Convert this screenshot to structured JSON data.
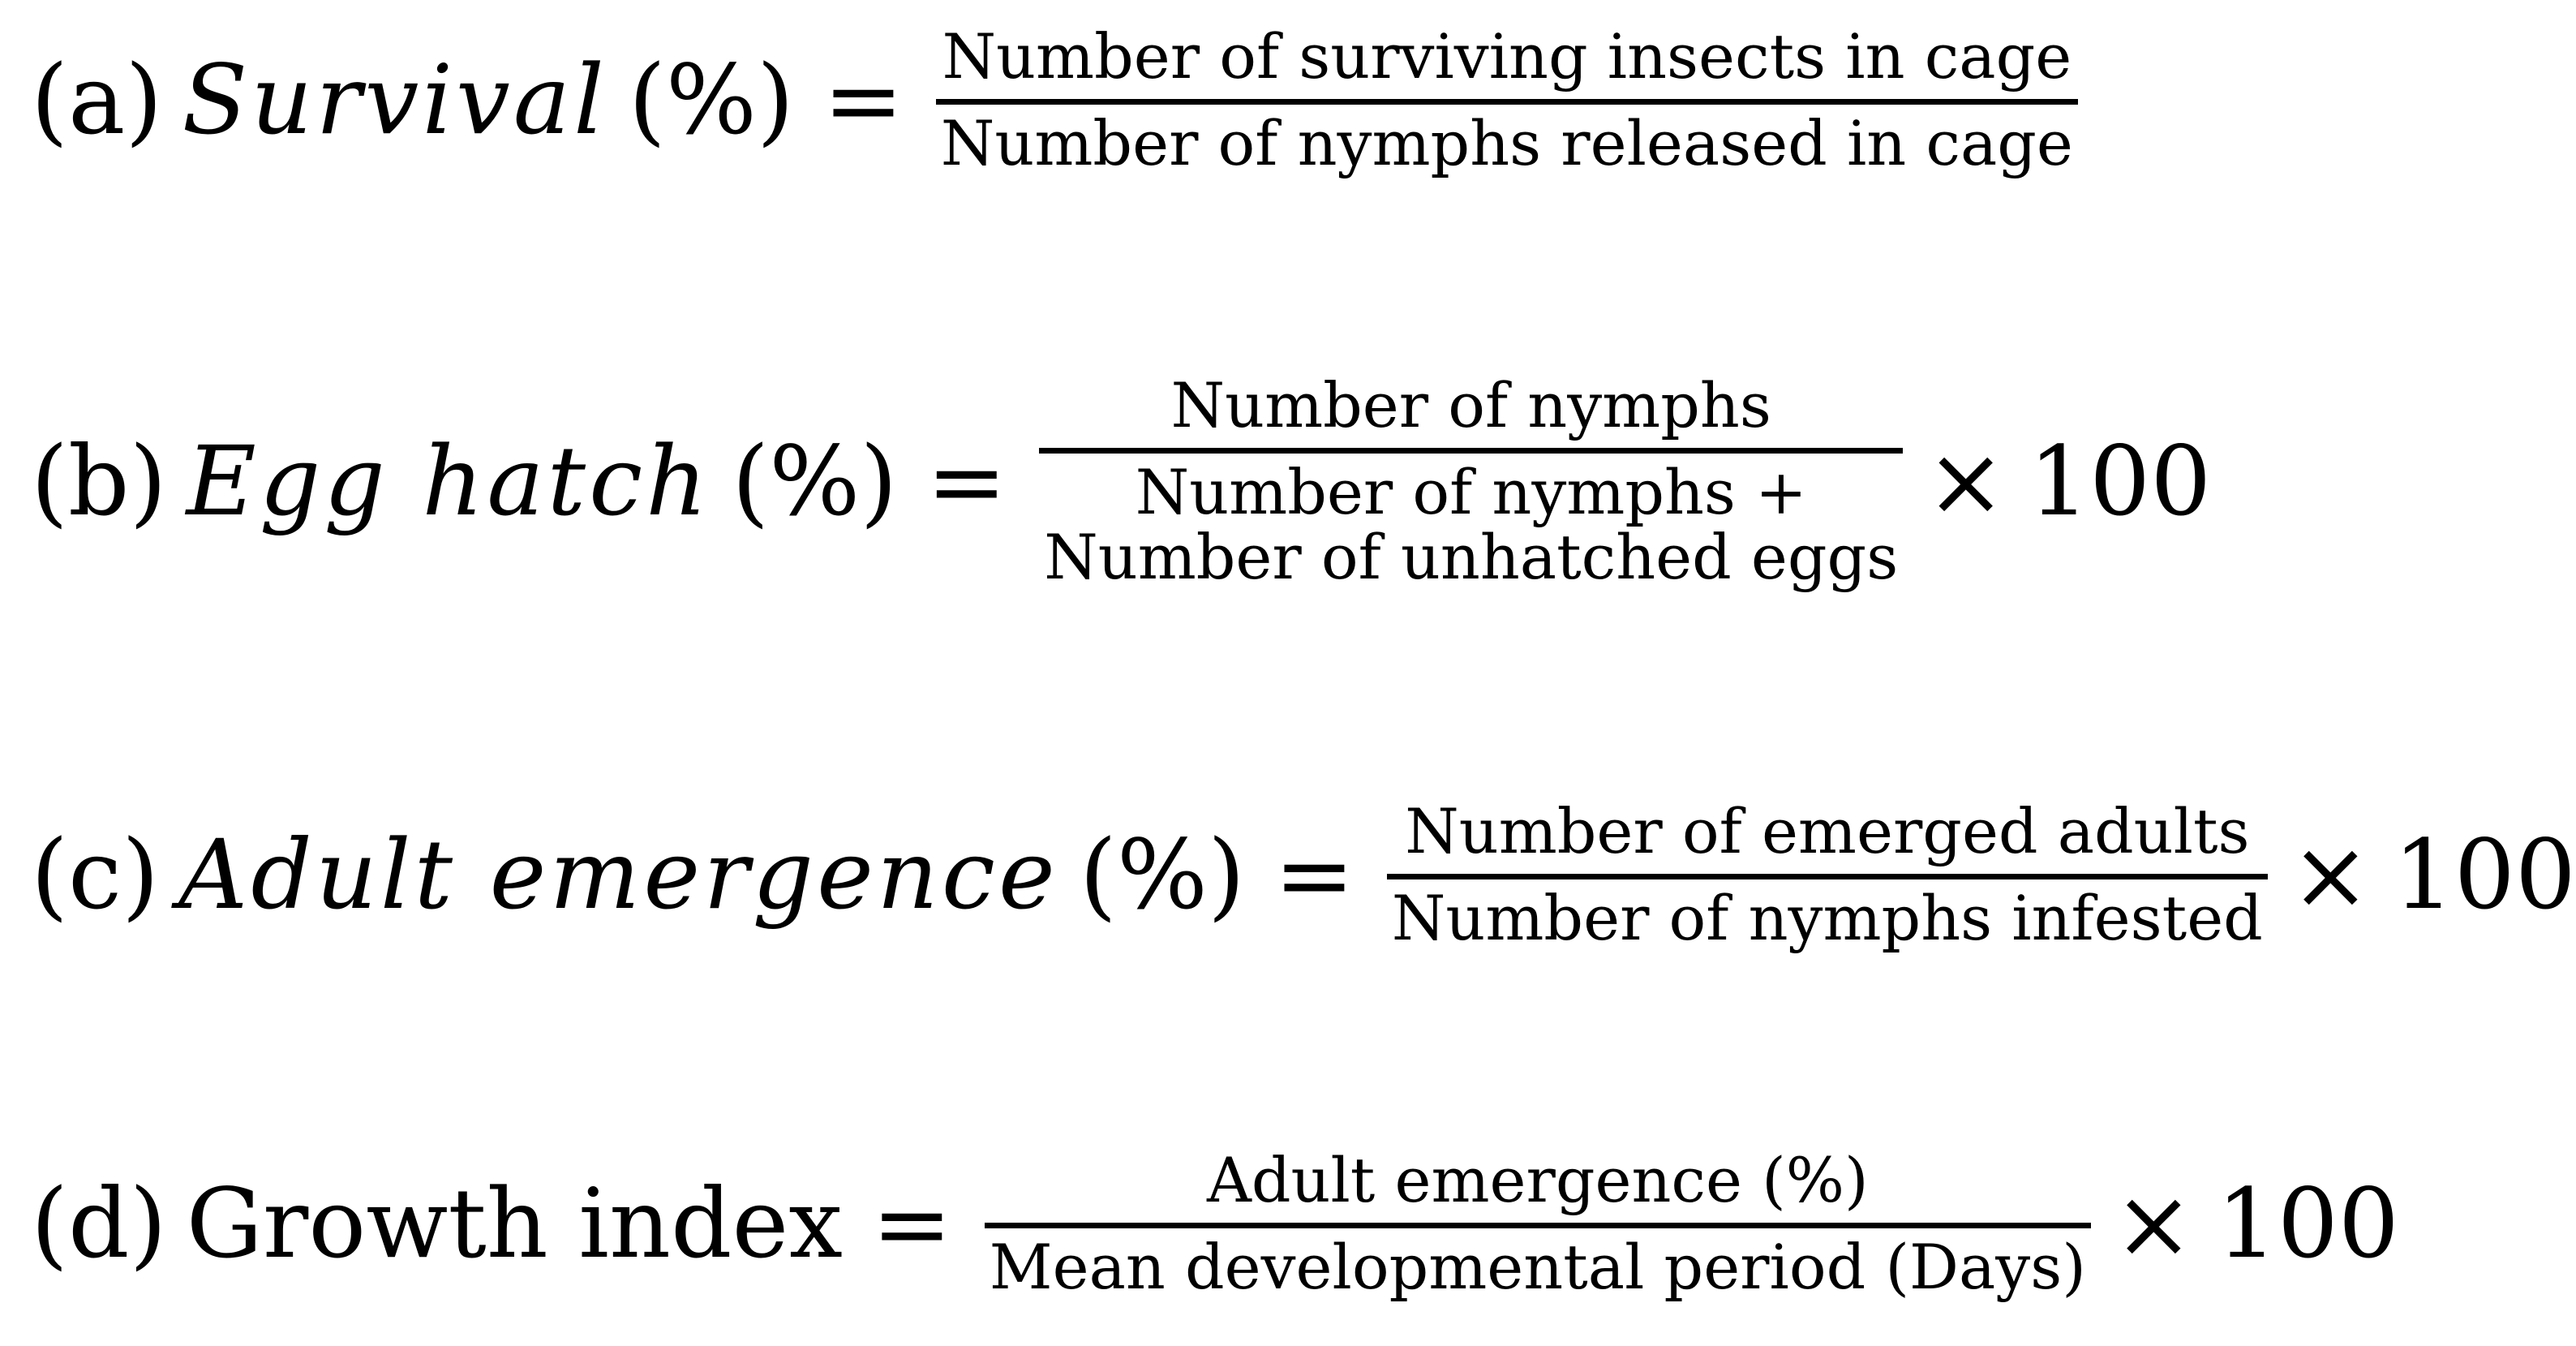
{
  "equations": [
    {
      "label": "(a)",
      "lhs": "Survival",
      "pct": "(%)",
      "equals": "=",
      "numerator": "Number of surviving insects in cage",
      "denominator": [
        "Number of nymphs released in cage"
      ],
      "times": "",
      "multiplier": ""
    },
    {
      "label": "(b)",
      "lhs": "Egg hatch",
      "pct": "(%)",
      "equals": "=",
      "numerator": "Number of nymphs",
      "denominator": [
        "Number of nymphs +",
        "Number of unhatched eggs"
      ],
      "times": "×",
      "multiplier": "100"
    },
    {
      "label": "(c)",
      "lhs": "Adult emergence",
      "pct": "(%)",
      "equals": "=",
      "numerator": "Number of emerged adults",
      "denominator": [
        "Number of nymphs infested"
      ],
      "times": "×",
      "multiplier": "100"
    },
    {
      "label": "(d)",
      "lhs": "Growth index",
      "pct": "",
      "equals": "=",
      "numerator": "Adult emergence (%)",
      "denominator": [
        "Mean developmental period (Days)"
      ],
      "times": "×",
      "multiplier": "100"
    }
  ]
}
